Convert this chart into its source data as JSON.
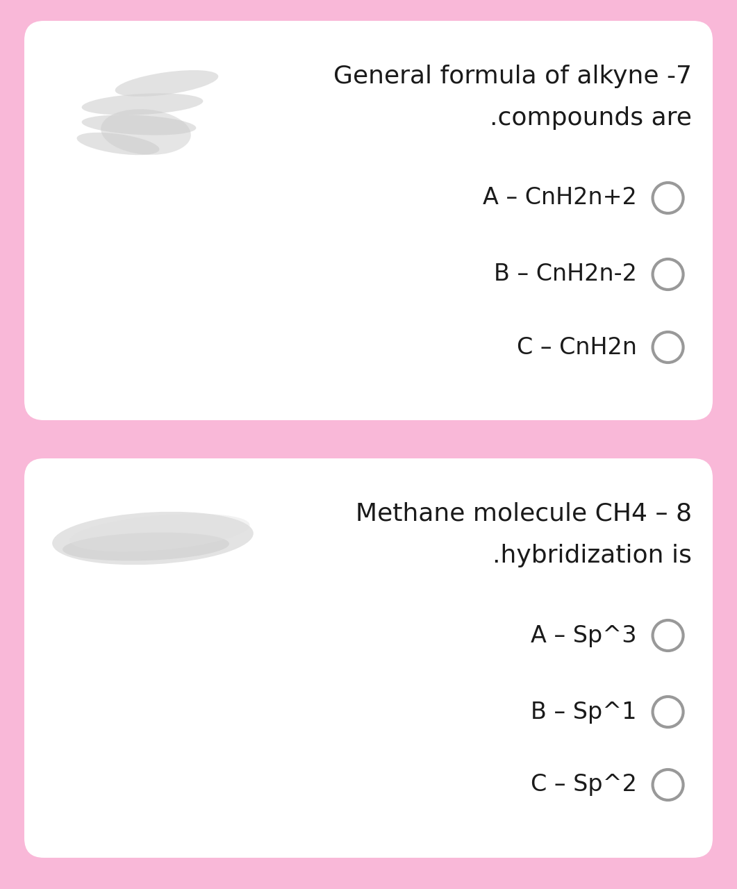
{
  "background_color": "#f9b8d8",
  "card_bg": "#ffffff",
  "text_color": "#1a1a1a",
  "circle_edge_color": "#999999",
  "card1": {
    "title_line1": "General formula of alkyne -7",
    "title_line2": ".compounds are",
    "options": [
      "A – CnH2n+2",
      "B – CnH2n-2",
      "C – CnH2n"
    ]
  },
  "card2": {
    "title_line1": "Methane molecule CH4 – 8",
    "title_line2": ".hybridization is",
    "options": [
      "A – Sp^3",
      "B – Sp^1",
      "C – Sp^2"
    ]
  },
  "font_size_title": 26,
  "font_size_option": 24
}
